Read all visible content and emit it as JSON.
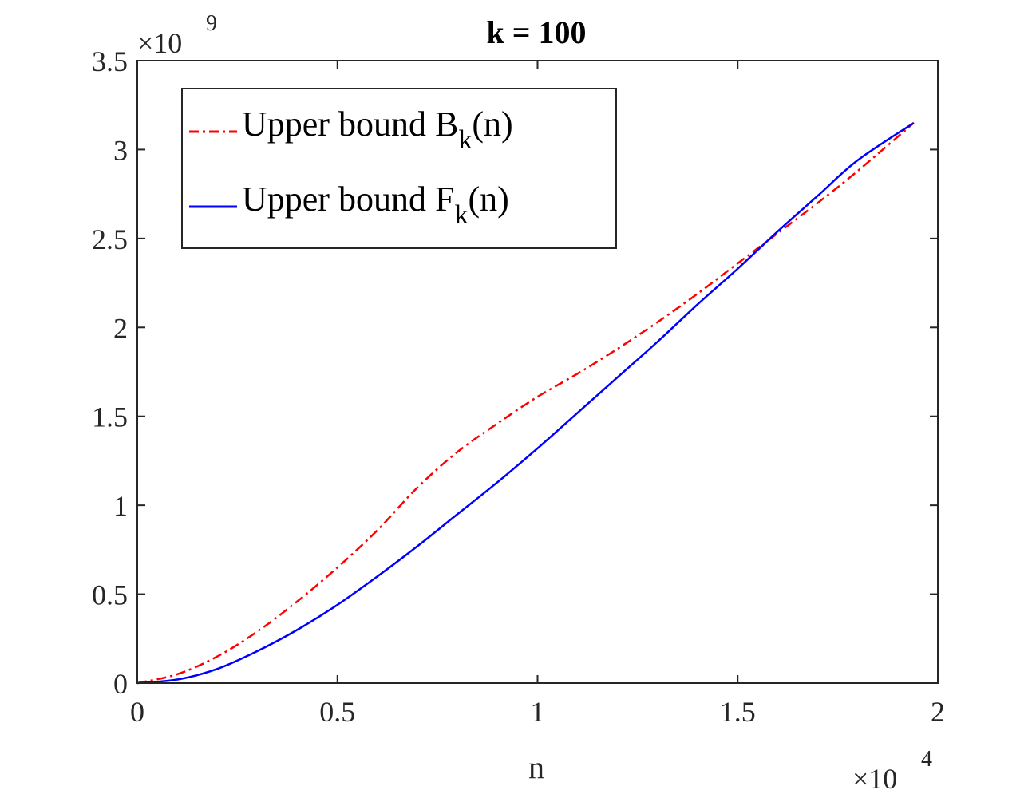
{
  "chart_data": {
    "type": "line",
    "title": "k = 100",
    "xlabel": "n",
    "ylabel": "",
    "xlim": [
      0,
      20000
    ],
    "ylim": [
      0,
      3500000000
    ],
    "x_ticks": [
      0,
      0.5,
      1,
      1.5,
      2
    ],
    "x_tick_labels": [
      "0",
      "0.5",
      "1",
      "1.5",
      "2"
    ],
    "y_ticks": [
      0,
      0.5,
      1,
      1.5,
      2,
      2.5,
      3,
      3.5
    ],
    "y_tick_labels": [
      "0",
      "0.5",
      "1",
      "1.5",
      "2",
      "2.5",
      "3",
      "3.5"
    ],
    "x_multiplier": {
      "base": "×10",
      "exponent": "4"
    },
    "y_multiplier": {
      "base": "×10",
      "exponent": "9"
    },
    "grid": false,
    "legend_position": "top-left",
    "x": [
      0,
      1000,
      2000,
      3000,
      4000,
      5000,
      6000,
      7000,
      8000,
      9000,
      10000,
      11000,
      12000,
      13000,
      14000,
      15000,
      16000,
      17000,
      18000,
      19400
    ],
    "series": [
      {
        "name": "Upper bound B",
        "name_subscript": "k",
        "name_suffix": "(n)",
        "color": "#ff0000",
        "dash": "dashdot",
        "values": [
          0,
          50000000,
          150000000,
          290000000,
          460000000,
          650000000,
          860000000,
          1100000000,
          1300000000,
          1460000000,
          1610000000,
          1740000000,
          1880000000,
          2030000000,
          2190000000,
          2360000000,
          2530000000,
          2700000000,
          2880000000,
          3150000000
        ]
      },
      {
        "name": "Upper bound F",
        "name_subscript": "k",
        "name_suffix": "(n)",
        "color": "#0000ff",
        "dash": "solid",
        "values": [
          0,
          20000000,
          80000000,
          180000000,
          300000000,
          440000000,
          600000000,
          770000000,
          950000000,
          1130000000,
          1320000000,
          1520000000,
          1720000000,
          1920000000,
          2130000000,
          2330000000,
          2540000000,
          2740000000,
          2940000000,
          3150000000
        ]
      }
    ]
  }
}
